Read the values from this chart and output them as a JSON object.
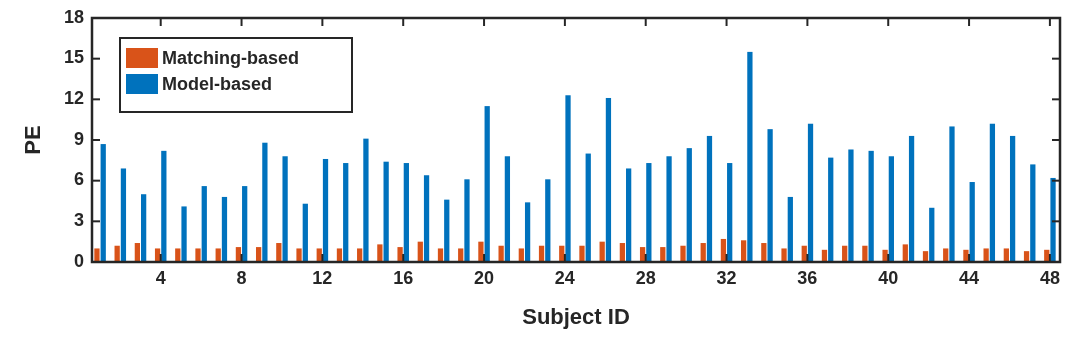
{
  "chart_data": {
    "type": "bar",
    "xlabel": "Subject ID",
    "ylabel": "PE",
    "x": [
      1,
      2,
      3,
      4,
      5,
      6,
      7,
      8,
      9,
      10,
      11,
      12,
      13,
      14,
      15,
      16,
      17,
      18,
      19,
      20,
      21,
      22,
      23,
      24,
      25,
      26,
      27,
      28,
      29,
      30,
      31,
      32,
      33,
      34,
      35,
      36,
      37,
      38,
      39,
      40,
      41,
      42,
      43,
      44,
      45,
      46,
      47,
      48
    ],
    "xlim": [
      0.6,
      48.5
    ],
    "xticks": [
      4,
      8,
      12,
      16,
      20,
      24,
      28,
      32,
      36,
      40,
      44,
      48
    ],
    "ylim": [
      0,
      18
    ],
    "yticks": [
      0,
      3,
      6,
      9,
      12,
      15,
      18
    ],
    "legend": "top left",
    "grid": false,
    "series": [
      {
        "name": "Matching-based",
        "color": "#d95319",
        "values": [
          1.0,
          1.2,
          1.4,
          1.0,
          1.0,
          1.0,
          1.0,
          1.1,
          1.1,
          1.4,
          1.0,
          1.0,
          1.0,
          1.0,
          1.3,
          1.1,
          1.5,
          1.0,
          1.0,
          1.5,
          1.2,
          1.0,
          1.2,
          1.2,
          1.2,
          1.5,
          1.4,
          1.1,
          1.1,
          1.2,
          1.4,
          1.7,
          1.6,
          1.4,
          1.0,
          1.2,
          0.9,
          1.2,
          1.2,
          0.9,
          1.3,
          0.8,
          1.0,
          0.9,
          1.0,
          1.0,
          0.8,
          0.9
        ]
      },
      {
        "name": "Model-based",
        "color": "#0072bd",
        "values": [
          8.7,
          6.9,
          5.0,
          8.2,
          4.1,
          5.6,
          4.8,
          5.6,
          8.8,
          7.8,
          4.3,
          7.6,
          7.3,
          9.1,
          7.4,
          7.3,
          6.4,
          4.6,
          6.1,
          11.5,
          7.8,
          4.4,
          6.1,
          12.3,
          8.0,
          12.1,
          6.9,
          7.3,
          7.8,
          8.4,
          9.3,
          7.3,
          15.5,
          9.8,
          4.8,
          10.2,
          7.7,
          8.3,
          8.2,
          7.8,
          9.3,
          4.0,
          10.0,
          5.9,
          10.2,
          9.3,
          7.2,
          6.2
        ]
      }
    ]
  }
}
